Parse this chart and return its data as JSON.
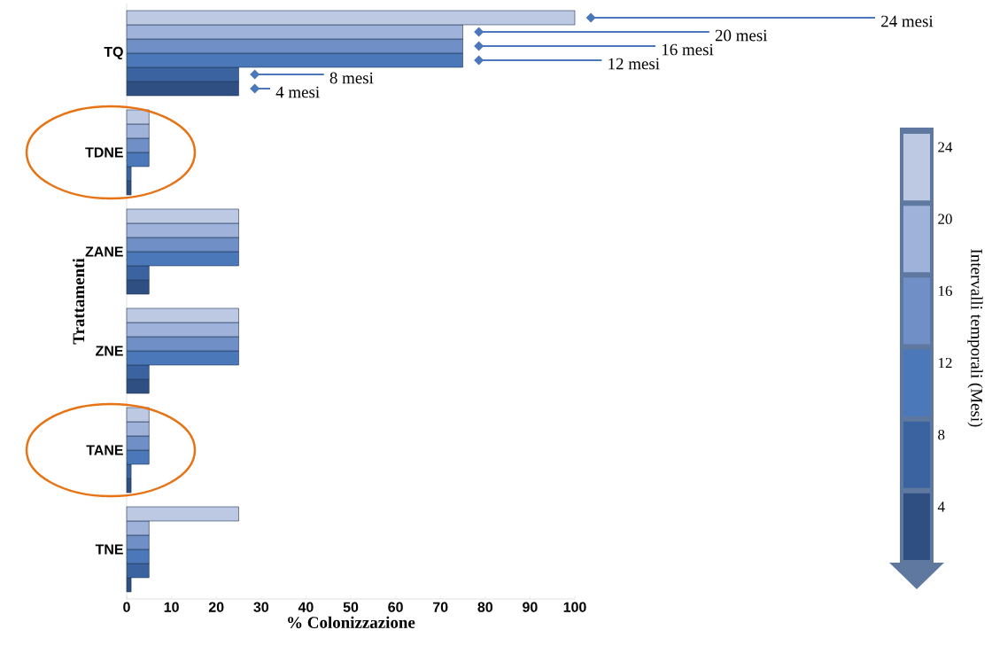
{
  "chart_data": {
    "type": "bar",
    "orientation": "horizontal",
    "xlabel": "% Colonizzazione",
    "ylabel": "Trattamenti",
    "legend_title": "Intervalli temporali (Mesi)",
    "legend": "right",
    "categories": [
      "TQ",
      "TDNE",
      "ZANE",
      "ZNE",
      "TANE",
      "TNE"
    ],
    "xlim": [
      0,
      100
    ],
    "xticks": [
      0,
      10,
      20,
      30,
      40,
      50,
      60,
      70,
      80,
      90,
      100
    ],
    "series": [
      {
        "name": "4",
        "color": "#2f4f82",
        "values": [
          25,
          1,
          5,
          5,
          1,
          1
        ]
      },
      {
        "name": "8",
        "color": "#3b63a0",
        "values": [
          25,
          1,
          5,
          5,
          1,
          5
        ]
      },
      {
        "name": "12",
        "color": "#4a78b8",
        "values": [
          75,
          5,
          25,
          25,
          5,
          5
        ]
      },
      {
        "name": "16",
        "color": "#6f8fc6",
        "values": [
          75,
          5,
          25,
          25,
          5,
          5
        ]
      },
      {
        "name": "20",
        "color": "#9fb2d9",
        "values": [
          75,
          5,
          25,
          25,
          5,
          5
        ]
      },
      {
        "name": "24",
        "color": "#bdc9e3",
        "values": [
          100,
          5,
          25,
          25,
          5,
          25
        ]
      }
    ],
    "annotations": [
      "4 mesi",
      "8 mesi",
      "12 mesi",
      "16 mesi",
      "20 mesi",
      "24 mesi"
    ]
  }
}
